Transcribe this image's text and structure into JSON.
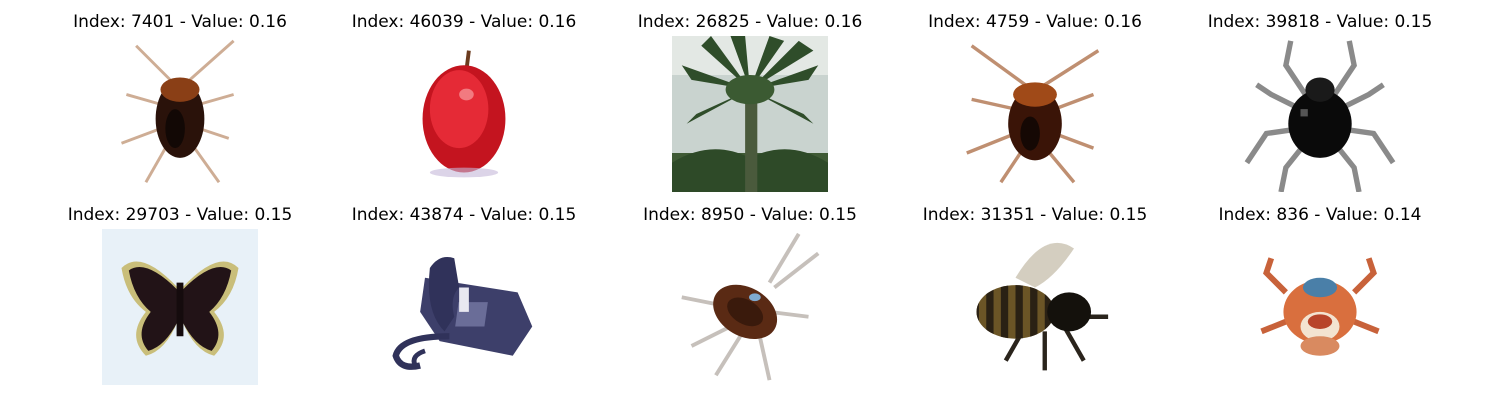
{
  "figure": {
    "panels": [
      {
        "title": "Index: 7401 - Value: 0.16",
        "subject": "cockroach-image"
      },
      {
        "title": "Index: 46039 - Value: 0.16",
        "subject": "apple-image"
      },
      {
        "title": "Index: 26825 - Value: 0.16",
        "subject": "palm-tree-image"
      },
      {
        "title": "Index: 4759 - Value: 0.16",
        "subject": "cockroach-image"
      },
      {
        "title": "Index: 39818 - Value: 0.15",
        "subject": "spider-image"
      },
      {
        "title": "Index: 29703 - Value: 0.15",
        "subject": "butterfly-image"
      },
      {
        "title": "Index: 43874 - Value: 0.15",
        "subject": "telephone-image"
      },
      {
        "title": "Index: 8950 - Value: 0.15",
        "subject": "cockroach-image"
      },
      {
        "title": "Index: 31351 - Value: 0.15",
        "subject": "bee-image"
      },
      {
        "title": "Index: 836 - Value: 0.14",
        "subject": "crab-image"
      }
    ]
  }
}
